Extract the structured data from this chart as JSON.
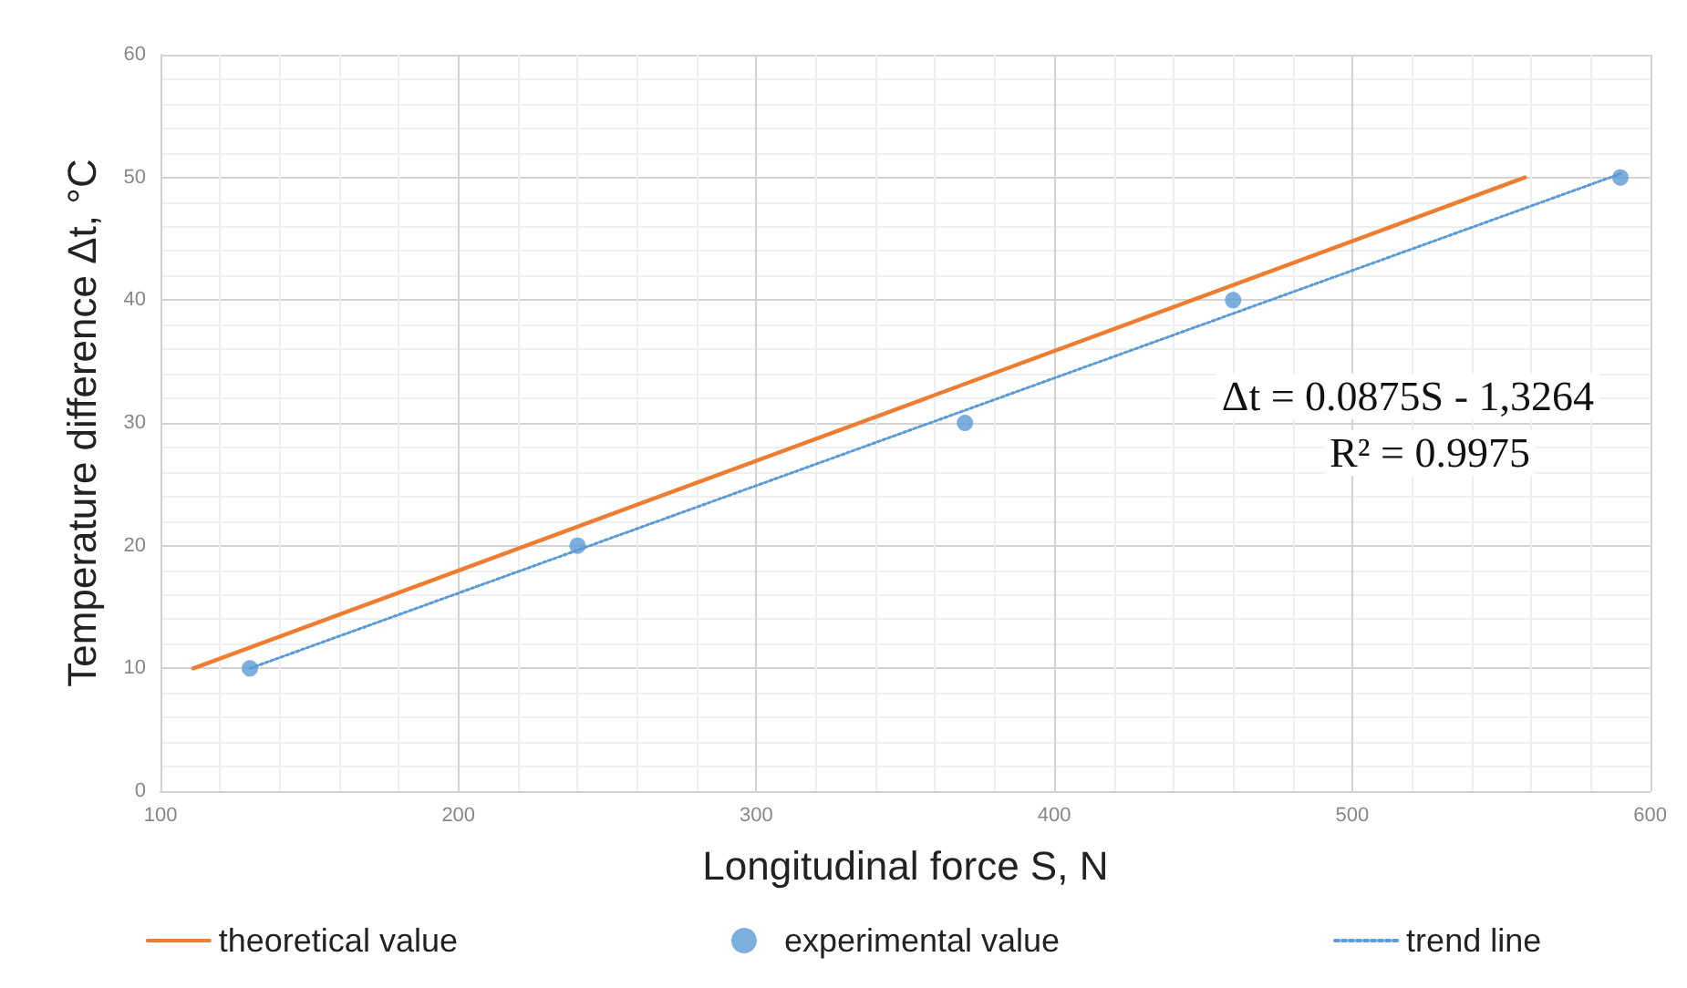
{
  "chart_data": {
    "type": "line",
    "xlabel": "Longitudinal force S, N",
    "ylabel": "Temperature difference Δt, °C",
    "xlim": [
      100,
      600
    ],
    "xticks": [
      100,
      200,
      300,
      400,
      500,
      600
    ],
    "ylim": [
      0,
      60
    ],
    "yticks": [
      0,
      10,
      20,
      30,
      40,
      50,
      60
    ],
    "series": [
      {
        "name": "theoretical value",
        "color": "#ed7d31",
        "line_style": "solid",
        "marker": "none",
        "x": [
          111,
          558
        ],
        "values": [
          10,
          50
        ]
      },
      {
        "name": "experimental value",
        "type": "scatter",
        "color": "#5b9bd5",
        "marker": "circle",
        "x": [
          130,
          240,
          370,
          460,
          590
        ],
        "values": [
          10,
          20,
          30,
          40,
          50
        ]
      },
      {
        "name": "trend line",
        "color": "#5b9bd5",
        "line_style": "dotted",
        "marker": "none",
        "x": [
          130,
          590
        ],
        "values": [
          10,
          50.3
        ]
      }
    ],
    "annotations": [
      "Δt = 0.0875S - 1,3264",
      "R² = 0.9975"
    ],
    "grid": true,
    "legend": "bottom"
  }
}
